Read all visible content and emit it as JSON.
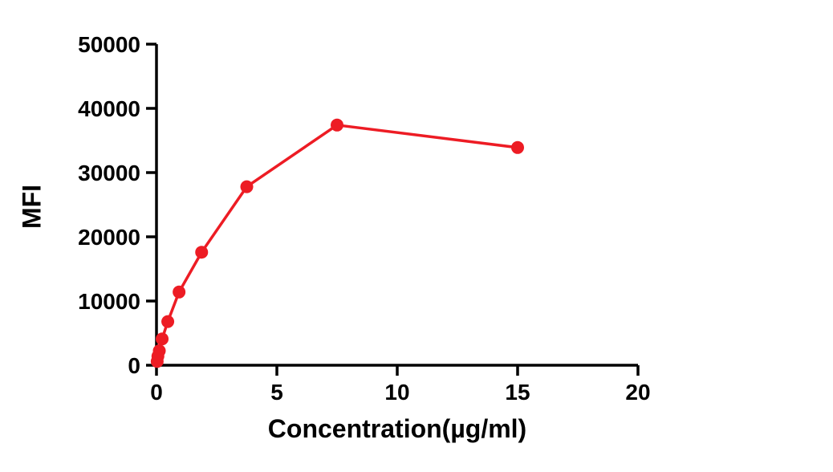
{
  "chart_data": {
    "type": "line",
    "title": "",
    "xlabel": "Concentration(µg/ml)",
    "ylabel": "MFI",
    "xlim": [
      0,
      20
    ],
    "ylim": [
      0,
      50000
    ],
    "xticks": [
      0,
      5,
      10,
      15,
      20
    ],
    "yticks": [
      0,
      10000,
      20000,
      30000,
      40000,
      50000
    ],
    "grid": false,
    "legend": false,
    "marker": "circle",
    "series": [
      {
        "name": "MFI",
        "color": "#ed1c24",
        "x": [
          0.029,
          0.059,
          0.117,
          0.234,
          0.469,
          0.938,
          1.875,
          3.75,
          7.5,
          15
        ],
        "y": [
          600,
          1400,
          2250,
          4100,
          6800,
          11400,
          17600,
          27800,
          37400,
          33900
        ]
      }
    ]
  }
}
